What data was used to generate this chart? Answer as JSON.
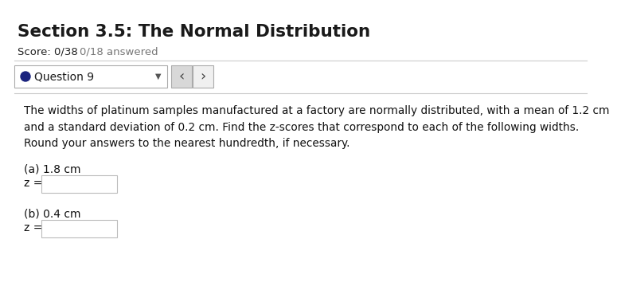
{
  "title": "Section 3.5: The Normal Distribution",
  "score_text": "Score: 0/38",
  "answered_text": "0/18 answered",
  "question_label": "● Question 9",
  "problem_text": "The widths of platinum samples manufactured at a factory are normally distributed, with a mean of 1.2 cm\nand a standard deviation of 0.2 cm. Find the z-scores that correspond to each of the following widths.\nRound your answers to the nearest hundredth, if necessary.",
  "part_a_label": "(a) 1.8 cm",
  "part_b_label": "(b) 0.4 cm",
  "z_label": "z =",
  "bg_color": "#ffffff",
  "title_color": "#1a1a1a",
  "score_color": "#222222",
  "answered_color": "#777777",
  "divider_color": "#cccccc",
  "dot_color": "#1a237e",
  "box_border_color": "#bbbbbb",
  "box_fill_color": "#ffffff",
  "nav_btn_bg_dark": "#d8d8d8",
  "nav_btn_bg_light": "#f0f0f0",
  "nav_btn_border": "#aaaaaa",
  "question_box_border": "#aaaaaa",
  "body_text_color": "#111111",
  "dropdown_arrow": "▼"
}
